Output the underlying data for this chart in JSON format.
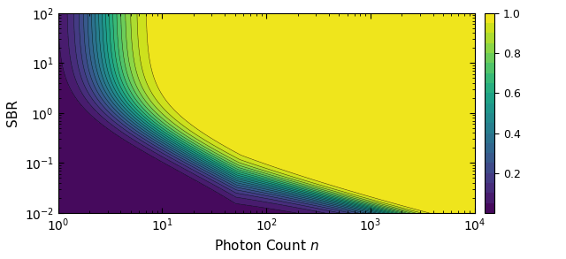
{
  "xlabel": "Photon Count $n$",
  "ylabel": "SBR",
  "n_min": 1,
  "n_max": 10000,
  "sbr_min": 0.01,
  "sbr_max": 100,
  "cmap": "viridis",
  "clim": [
    0,
    1
  ],
  "colorbar_ticks": [
    0.2,
    0.4,
    0.6,
    0.8,
    1.0
  ],
  "n_levels": 20,
  "figsize": [
    6.4,
    2.93
  ],
  "dpi": 100
}
